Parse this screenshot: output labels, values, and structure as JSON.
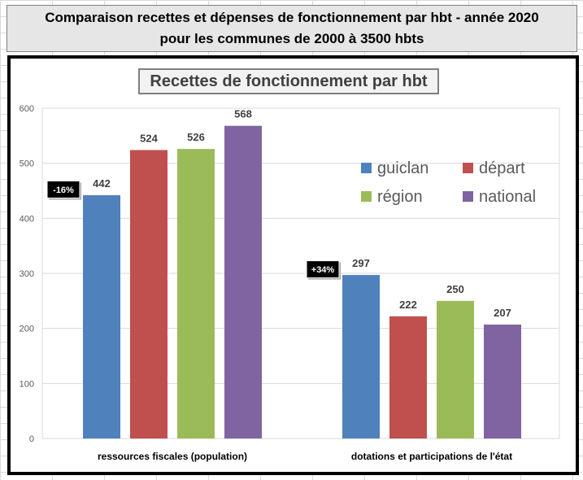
{
  "header": {
    "line1": "Comparaison recettes et dépenses de fonctionnement par hbt  -  année 2020",
    "line2": "pour les communes de 2000 à 3500 hbts"
  },
  "chart_data": {
    "type": "bar",
    "title": "Recettes de fonctionnement par hbt",
    "categories": [
      "ressources fiscales (population)",
      "dotations et participations de l'état"
    ],
    "series": [
      {
        "name": "guiclan",
        "color": "#4f81bd",
        "values": [
          442,
          297
        ]
      },
      {
        "name": "départ",
        "color": "#c0504d",
        "values": [
          524,
          222
        ]
      },
      {
        "name": "région",
        "color": "#9bbb59",
        "values": [
          526,
          250
        ]
      },
      {
        "name": "national",
        "color": "#8064a2",
        "values": [
          568,
          207
        ]
      }
    ],
    "ylim": [
      0,
      600
    ],
    "yticks": [
      0,
      100,
      200,
      300,
      400,
      500,
      600
    ],
    "grid": true,
    "legend_position": "top-right",
    "annotations": [
      "-16%",
      "+34%"
    ]
  }
}
